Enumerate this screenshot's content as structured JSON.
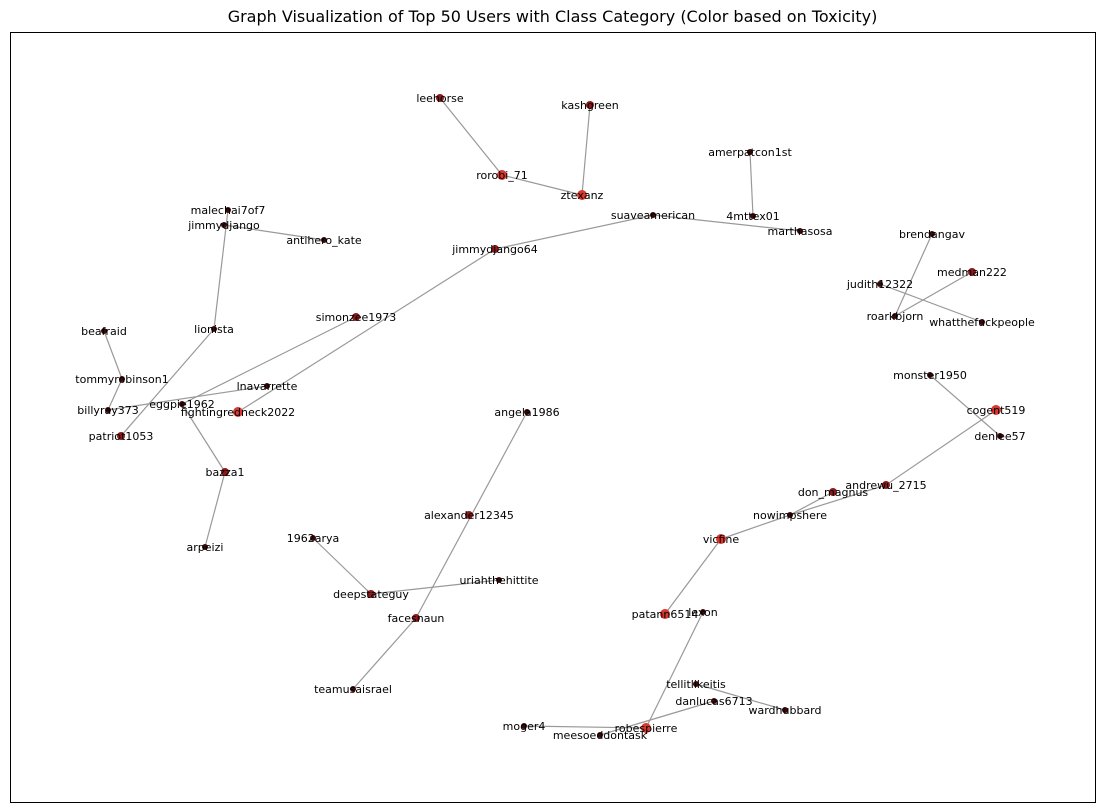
{
  "title": "Graph Visualization of Top 50 Users with Class Category (Color based on Toxicity)",
  "colors": {
    "edge": "#999999",
    "low": "#3a0808",
    "mid": "#8b1a1a",
    "high": "#d9382f",
    "frame": "#000000"
  },
  "chart_data": {
    "type": "network",
    "nodes": [
      {
        "id": "leehorse",
        "toxicity": "mid"
      },
      {
        "id": "kashgreen",
        "toxicity": "mid"
      },
      {
        "id": "rorobi_71",
        "toxicity": "high"
      },
      {
        "id": "ztexanz",
        "toxicity": "high"
      },
      {
        "id": "amerpatcon1st",
        "toxicity": "low"
      },
      {
        "id": "4mttex01",
        "toxicity": "low"
      },
      {
        "id": "suaveamerican",
        "toxicity": "low"
      },
      {
        "id": "marthasosa",
        "toxicity": "low"
      },
      {
        "id": "jimmydjango64",
        "toxicity": "mid"
      },
      {
        "id": "simonzee1973",
        "toxicity": "mid"
      },
      {
        "id": "malechai7of7",
        "toxicity": "low"
      },
      {
        "id": "jimmydjango",
        "toxicity": "low"
      },
      {
        "id": "antihero_kate",
        "toxicity": "low"
      },
      {
        "id": "lionista",
        "toxicity": "low"
      },
      {
        "id": "beafraid",
        "toxicity": "low"
      },
      {
        "id": "tommyrobinson1",
        "toxicity": "low"
      },
      {
        "id": "lnavarrette",
        "toxicity": "low"
      },
      {
        "id": "eggpie1962",
        "toxicity": "low"
      },
      {
        "id": "billyray373",
        "toxicity": "low"
      },
      {
        "id": "fightingredneck2022",
        "toxicity": "high"
      },
      {
        "id": "patriot1053",
        "toxicity": "mid"
      },
      {
        "id": "bazza1",
        "toxicity": "mid"
      },
      {
        "id": "arpeizi",
        "toxicity": "low"
      },
      {
        "id": "brendangav",
        "toxicity": "low"
      },
      {
        "id": "medman222",
        "toxicity": "mid"
      },
      {
        "id": "judith12322",
        "toxicity": "low"
      },
      {
        "id": "roarkbjorn",
        "toxicity": "low"
      },
      {
        "id": "whatthefuckpeople",
        "toxicity": "low"
      },
      {
        "id": "monster1950",
        "toxicity": "low"
      },
      {
        "id": "cogent519",
        "toxicity": "high"
      },
      {
        "id": "denlee57",
        "toxicity": "low"
      },
      {
        "id": "angela1986",
        "toxicity": "low"
      },
      {
        "id": "andrewu_2715",
        "toxicity": "mid"
      },
      {
        "id": "don_magnus",
        "toxicity": "mid"
      },
      {
        "id": "nowimpshere",
        "toxicity": "low"
      },
      {
        "id": "alexander12345",
        "toxicity": "mid"
      },
      {
        "id": "vicfine",
        "toxicity": "high"
      },
      {
        "id": "1962arya",
        "toxicity": "low"
      },
      {
        "id": "uriahthehittite",
        "toxicity": "low"
      },
      {
        "id": "deepstateguy",
        "toxicity": "mid"
      },
      {
        "id": "facesnaun",
        "toxicity": "mid"
      },
      {
        "id": "patann6514",
        "toxicity": "high"
      },
      {
        "id": "lexon",
        "toxicity": "low"
      },
      {
        "id": "teamusaisrael",
        "toxicity": "low"
      },
      {
        "id": "tellitlikeitis",
        "toxicity": "low"
      },
      {
        "id": "danlucas6713",
        "toxicity": "low"
      },
      {
        "id": "wardhubbard",
        "toxicity": "low"
      },
      {
        "id": "moger4",
        "toxicity": "low"
      },
      {
        "id": "robespierre",
        "toxicity": "high"
      },
      {
        "id": "meesoeddontask",
        "toxicity": "low"
      }
    ],
    "edges": [
      [
        "leehorse",
        "rorobi_71"
      ],
      [
        "rorobi_71",
        "ztexanz"
      ],
      [
        "kashgreen",
        "ztexanz"
      ],
      [
        "amerpatcon1st",
        "4mttex01"
      ],
      [
        "jimmydjango64",
        "suaveamerican"
      ],
      [
        "suaveamerican",
        "marthasosa"
      ],
      [
        "jimmydjango64",
        "fightingredneck2022"
      ],
      [
        "simonzee1973",
        "eggpie1962"
      ],
      [
        "malechai7of7",
        "lionista"
      ],
      [
        "jimmydjango",
        "antihero_kate"
      ],
      [
        "lionista",
        "patriot1053"
      ],
      [
        "beafraid",
        "tommyrobinson1"
      ],
      [
        "tommyrobinson1",
        "billyray373"
      ],
      [
        "billyray373",
        "lnavarrette"
      ],
      [
        "eggpie1962",
        "bazza1"
      ],
      [
        "bazza1",
        "arpeizi"
      ],
      [
        "brendangav",
        "roarkbjorn"
      ],
      [
        "medman222",
        "roarkbjorn"
      ],
      [
        "judith12322",
        "whatthefuckpeople"
      ],
      [
        "monster1950",
        "denlee57"
      ],
      [
        "cogent519",
        "andrewu_2715"
      ],
      [
        "don_magnus",
        "nowimpshere"
      ],
      [
        "nowimpshere",
        "andrewu_2715"
      ],
      [
        "nowimpshere",
        "vicfine"
      ],
      [
        "vicfine",
        "patann6514"
      ],
      [
        "angela1986",
        "facesnaun"
      ],
      [
        "facesnaun",
        "teamusaisrael"
      ],
      [
        "1962arya",
        "deepstateguy"
      ],
      [
        "deepstateguy",
        "uriahthehittite"
      ],
      [
        "lexon",
        "robespierre"
      ],
      [
        "tellitlikeitis",
        "wardhubbard"
      ],
      [
        "danlucas6713",
        "meesoeddontask"
      ],
      [
        "moger4",
        "robespierre"
      ]
    ]
  }
}
